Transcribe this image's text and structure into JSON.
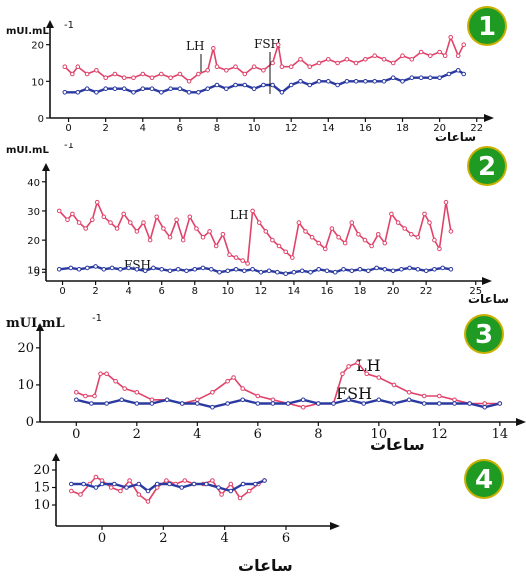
{
  "chart_data": [
    {
      "type": "line",
      "badge": "1",
      "unit_label": "mUI.mL",
      "unit_exponent": "-1",
      "x_label": "ساعات",
      "x_ticks": [
        0,
        2,
        4,
        6,
        8,
        10,
        12,
        14,
        16,
        18,
        20,
        22
      ],
      "y_ticks": [
        0,
        10,
        20
      ],
      "xlim": [
        -1,
        22.5
      ],
      "ylim": [
        0,
        24
      ],
      "annotations": [
        "LH",
        "FSH"
      ],
      "series": [
        {
          "color": "#e0436a",
          "x": [
            -0.2,
            0.2,
            0.5,
            1,
            1.5,
            2,
            2.5,
            3,
            3.5,
            4,
            4.5,
            5,
            5.5,
            6,
            6.5,
            7,
            7.5,
            7.8,
            8,
            8.5,
            9,
            9.5,
            10,
            10.5,
            11,
            11.3,
            11.5,
            12,
            12.5,
            13,
            13.5,
            14,
            14.5,
            15,
            15.5,
            16,
            16.5,
            17,
            17.5,
            18,
            18.5,
            19,
            19.5,
            20,
            20.3,
            20.6,
            21,
            21.3
          ],
          "y": [
            14,
            12,
            14,
            12,
            13,
            11,
            12,
            11,
            11,
            12,
            11,
            12,
            11,
            12,
            10,
            12,
            13,
            19,
            14,
            13,
            14,
            12,
            14,
            13,
            15,
            20,
            14,
            14,
            16,
            14,
            15,
            16,
            15,
            16,
            15,
            16,
            17,
            16,
            15,
            17,
            16,
            18,
            17,
            18,
            17,
            22,
            17,
            20
          ]
        },
        {
          "color": "#2b3aa0",
          "x": [
            -0.2,
            0.5,
            1,
            1.5,
            2,
            2.5,
            3,
            3.5,
            4,
            4.5,
            5,
            5.5,
            6,
            6.5,
            7,
            7.5,
            8,
            8.5,
            9,
            9.5,
            10,
            10.5,
            11,
            11.5,
            12,
            12.5,
            13,
            13.5,
            14,
            14.5,
            15,
            15.5,
            16,
            16.5,
            17,
            17.5,
            18,
            18.5,
            19,
            19.5,
            20,
            20.5,
            21,
            21.3
          ],
          "y": [
            7,
            7,
            8,
            7,
            8,
            8,
            8,
            7,
            8,
            8,
            7,
            8,
            8,
            7,
            7,
            8,
            9,
            8,
            9,
            9,
            8,
            9,
            9,
            7,
            9,
            10,
            9,
            10,
            10,
            9,
            10,
            10,
            10,
            10,
            10,
            11,
            10,
            11,
            11,
            11,
            11,
            12,
            13,
            12
          ]
        }
      ]
    },
    {
      "type": "line",
      "badge": "2",
      "unit_label": "mUI.mL",
      "unit_exponent": "-1",
      "x_label": "ساعات",
      "x_ticks": [
        0,
        2,
        4,
        6,
        8,
        10,
        12,
        14,
        16,
        18,
        20,
        22,
        25
      ],
      "y_ticks": [
        9,
        10,
        20,
        30,
        40
      ],
      "xlim": [
        -1,
        25.5
      ],
      "ylim": [
        6,
        43
      ],
      "annotations": [
        "LH",
        "FSH"
      ],
      "series": [
        {
          "color": "#e0436a",
          "x": [
            -0.2,
            0.3,
            0.6,
            1,
            1.4,
            1.8,
            2.1,
            2.5,
            2.9,
            3.3,
            3.7,
            4.1,
            4.5,
            4.9,
            5.3,
            5.7,
            6.1,
            6.5,
            6.9,
            7.3,
            7.7,
            8.1,
            8.5,
            8.9,
            9.3,
            9.7,
            10.1,
            10.5,
            10.9,
            11.2,
            11.5,
            11.9,
            12.3,
            12.7,
            13.1,
            13.5,
            13.9,
            14.3,
            14.7,
            15.1,
            15.5,
            15.9,
            16.3,
            16.7,
            17.1,
            17.5,
            17.9,
            18.3,
            18.7,
            19.1,
            19.5,
            19.9,
            20.3,
            20.7,
            21.1,
            21.5,
            21.9,
            22.2,
            22.5,
            22.8,
            23.2,
            23.5
          ],
          "y": [
            30,
            27,
            29,
            26,
            24,
            27,
            33,
            28,
            26,
            24,
            29,
            26,
            23,
            26,
            20,
            28,
            24,
            21,
            27,
            20,
            28,
            24,
            21,
            23,
            18,
            22,
            15,
            14,
            13,
            12,
            30,
            26,
            23,
            20,
            18,
            16,
            14,
            26,
            23,
            21,
            19,
            17,
            24,
            21,
            19,
            26,
            22,
            20,
            18,
            22,
            19,
            29,
            26,
            24,
            22,
            21,
            29,
            26,
            20,
            17,
            33,
            23
          ]
        },
        {
          "color": "#2b3aa0",
          "x": [
            -0.2,
            0.5,
            1,
            1.5,
            2,
            2.5,
            3,
            3.5,
            4,
            4.5,
            5,
            5.5,
            6,
            6.5,
            7,
            7.5,
            8,
            8.5,
            9,
            9.5,
            10,
            10.5,
            11,
            11.5,
            12,
            12.5,
            13,
            13.5,
            14,
            14.5,
            15,
            15.5,
            16,
            16.5,
            17,
            17.5,
            18,
            18.5,
            19,
            19.5,
            20,
            20.5,
            21,
            21.5,
            22,
            22.5,
            23,
            23.5
          ],
          "y": [
            10,
            10.5,
            10,
            10.5,
            11,
            10,
            10.5,
            10,
            10.5,
            10,
            9.5,
            10.5,
            10,
            9.5,
            10,
            9.5,
            10,
            10.5,
            10,
            9,
            9.5,
            10,
            9.5,
            10,
            9,
            9.5,
            9,
            8.5,
            9,
            9.5,
            9,
            10,
            9.5,
            9,
            10,
            9.5,
            10,
            9.5,
            10.5,
            10,
            9.5,
            10,
            10.5,
            10,
            9.5,
            10,
            10.5,
            10
          ]
        }
      ]
    },
    {
      "type": "line",
      "badge": "3",
      "unit_label": "mUI.mL",
      "unit_exponent": "-1",
      "x_label": "ساعات",
      "x_ticks": [
        0,
        2,
        4,
        6,
        8,
        10,
        12,
        14
      ],
      "y_ticks": [
        0,
        10,
        20
      ],
      "xlim": [
        -1.2,
        14.6
      ],
      "ylim": [
        0,
        24
      ],
      "annotations": [
        "LH",
        "FSH"
      ],
      "series": [
        {
          "color": "#e0436a",
          "x": [
            0,
            0.3,
            0.6,
            0.8,
            1,
            1.3,
            1.6,
            2,
            2.5,
            3,
            3.5,
            4,
            4.5,
            5,
            5.2,
            5.5,
            6,
            6.5,
            7,
            7.5,
            8,
            8.5,
            8.8,
            9,
            9.3,
            9.6,
            10,
            10.5,
            11,
            11.5,
            12,
            12.5,
            13,
            13.5,
            14
          ],
          "y": [
            8,
            7,
            7,
            13,
            13,
            11,
            9,
            8,
            6,
            6,
            5,
            6,
            8,
            11,
            12,
            9,
            7,
            6,
            5,
            4,
            5,
            5,
            13,
            15,
            16,
            13,
            12,
            10,
            8,
            7,
            7,
            6,
            5,
            5,
            5
          ]
        },
        {
          "color": "#2b3aa0",
          "x": [
            0,
            0.5,
            1,
            1.5,
            2,
            2.5,
            3,
            3.5,
            4,
            4.5,
            5,
            5.5,
            6,
            6.5,
            7,
            7.5,
            8,
            8.5,
            9,
            9.5,
            10,
            10.5,
            11,
            11.5,
            12,
            12.5,
            13,
            13.5,
            14
          ],
          "y": [
            6,
            5,
            5,
            6,
            5,
            5,
            6,
            5,
            5,
            4,
            5,
            6,
            5,
            5,
            5,
            6,
            5,
            5,
            6,
            5,
            6,
            5,
            6,
            5,
            5,
            5,
            5,
            4,
            5
          ]
        }
      ]
    },
    {
      "type": "line",
      "badge": "4",
      "x_label": "ساعات",
      "x_ticks": [
        0,
        2,
        4,
        6
      ],
      "y_ticks": [
        10,
        15,
        20
      ],
      "xlim": [
        -1.5,
        7.5
      ],
      "ylim": [
        4,
        22
      ],
      "series": [
        {
          "color": "#e0436a",
          "x": [
            -1,
            -0.7,
            -0.4,
            -0.2,
            0,
            0.3,
            0.6,
            0.9,
            1.2,
            1.5,
            1.8,
            2.1,
            2.4,
            2.7,
            3,
            3.3,
            3.6,
            3.9,
            4.2,
            4.5,
            4.8,
            5.1,
            5.3
          ],
          "y": [
            14,
            13,
            16,
            18,
            17,
            15,
            14,
            17,
            13,
            11,
            15,
            17,
            16,
            17,
            16,
            16,
            17,
            13,
            16,
            12,
            14,
            16,
            17
          ]
        },
        {
          "color": "#2b3aa0",
          "x": [
            -1,
            -0.6,
            -0.2,
            0,
            0.4,
            0.8,
            1.2,
            1.5,
            1.8,
            2.2,
            2.6,
            3,
            3.4,
            3.8,
            4.2,
            4.6,
            5,
            5.3
          ],
          "y": [
            16,
            16,
            15,
            16,
            16,
            15,
            16,
            14,
            16,
            16,
            15,
            16,
            16,
            15,
            14,
            16,
            16,
            17
          ]
        }
      ]
    }
  ]
}
